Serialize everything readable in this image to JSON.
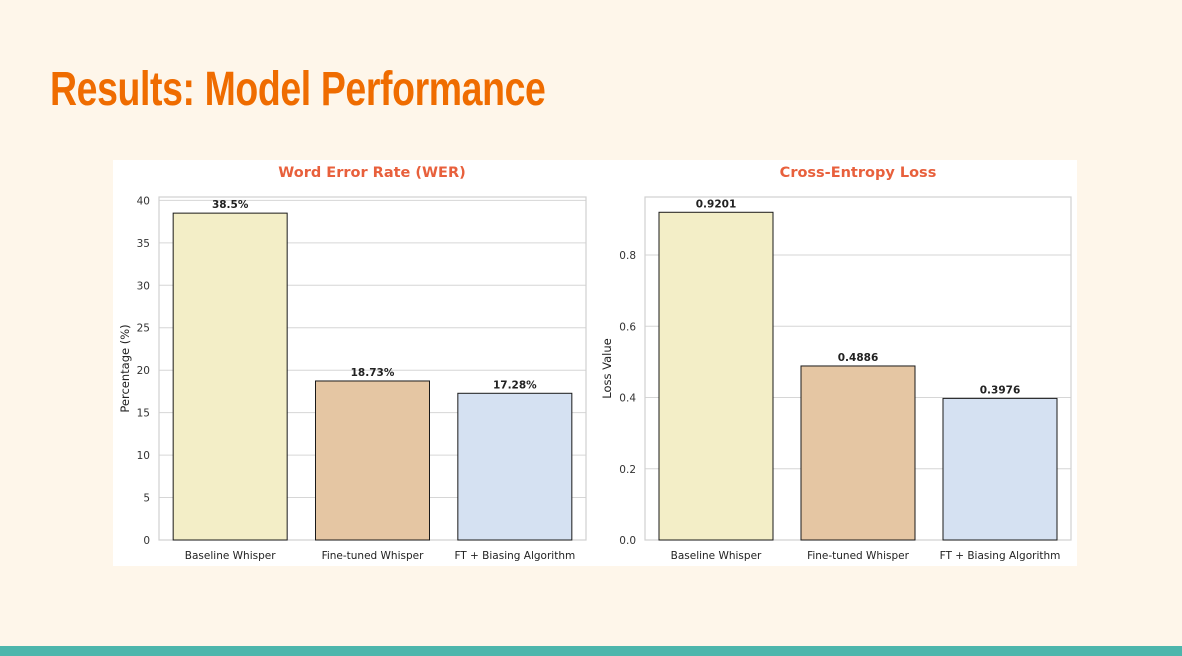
{
  "slide": {
    "title": "Results: Model Performance"
  },
  "colors": {
    "title": "#ef6c00",
    "chart_title": "#e8603c",
    "footer": "#4db6ac",
    "bars": [
      "#f3eec7",
      "#e5c6a3",
      "#d5e1f2"
    ]
  },
  "chart_data": [
    {
      "type": "bar",
      "title": "Word Error Rate (WER)",
      "xlabel": "",
      "ylabel": "Percentage (%)",
      "categories": [
        "Baseline Whisper",
        "Fine-tuned Whisper",
        "FT + Biasing Algorithm"
      ],
      "values": [
        38.5,
        18.73,
        17.28
      ],
      "data_labels": [
        "38.5%",
        "18.73%",
        "17.28%"
      ],
      "ylim": [
        0,
        40.4
      ],
      "yticks": [
        0,
        5,
        10,
        15,
        20,
        25,
        30,
        35,
        40
      ],
      "ytick_labels": [
        "0",
        "5",
        "10",
        "15",
        "20",
        "25",
        "30",
        "35",
        "40"
      ],
      "grid": true
    },
    {
      "type": "bar",
      "title": "Cross-Entropy Loss",
      "xlabel": "",
      "ylabel": "Loss Value",
      "categories": [
        "Baseline Whisper",
        "Fine-tuned Whisper",
        "FT + Biasing Algorithm"
      ],
      "values": [
        0.9201,
        0.4886,
        0.3976
      ],
      "data_labels": [
        "0.9201",
        "0.4886",
        "0.3976"
      ],
      "ylim": [
        0,
        0.963
      ],
      "yticks": [
        0,
        0.2,
        0.4,
        0.6,
        0.8
      ],
      "ytick_labels": [
        "0.0",
        "0.2",
        "0.4",
        "0.6",
        "0.8"
      ],
      "grid": true
    }
  ]
}
